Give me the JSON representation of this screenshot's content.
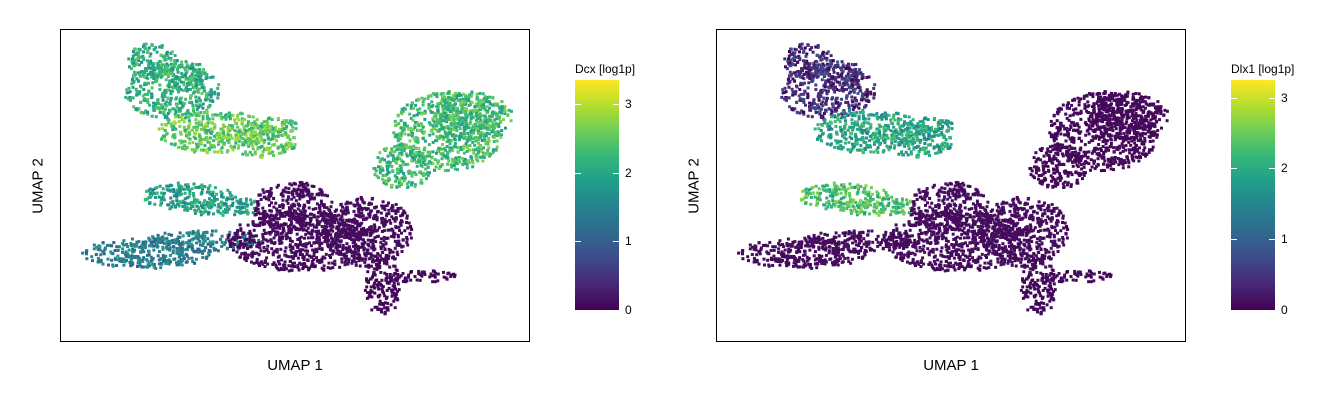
{
  "chart_data": [
    {
      "type": "scatter",
      "title": "",
      "xlabel": "UMAP 1",
      "ylabel": "UMAP 2",
      "colorbar": {
        "label": "Dcx [log1p]",
        "range": [
          0,
          3.35
        ],
        "ticks": [
          "0",
          "1",
          "2",
          "3"
        ]
      },
      "colormap": "viridis",
      "regions": [
        {
          "name": "upper-left branch",
          "value": 2.1
        },
        {
          "name": "upper-left core",
          "value": 2.5
        },
        {
          "name": "left-middle branch",
          "value": 1.9
        },
        {
          "name": "lower-left branch",
          "value": 1.4
        },
        {
          "name": "central stem",
          "value": 0.05
        },
        {
          "name": "right lobe",
          "value": 2.3
        },
        {
          "name": "bottom tail",
          "value": 0.02
        }
      ]
    },
    {
      "type": "scatter",
      "title": "",
      "xlabel": "UMAP 1",
      "ylabel": "UMAP 2",
      "colorbar": {
        "label": "Dlx1 [log1p]",
        "range": [
          0,
          3.25
        ],
        "ticks": [
          "0",
          "1",
          "2",
          "3"
        ]
      },
      "colormap": "viridis",
      "regions": [
        {
          "name": "upper-left branch",
          "value": 0.4
        },
        {
          "name": "upper-left core",
          "value": 1.9
        },
        {
          "name": "left-middle branch",
          "value": 2.3
        },
        {
          "name": "lower-left branch",
          "value": 0.05
        },
        {
          "name": "central stem",
          "value": 0.05
        },
        {
          "name": "right lobe",
          "value": 0.02
        },
        {
          "name": "bottom tail",
          "value": 0.02
        }
      ]
    }
  ],
  "colors": {
    "viridis_0": "#440154",
    "viridis_1": "#3b528b",
    "viridis_2": "#21918c",
    "viridis_3": "#5ec962",
    "viridis_4": "#fde725",
    "frame": "#000000"
  }
}
